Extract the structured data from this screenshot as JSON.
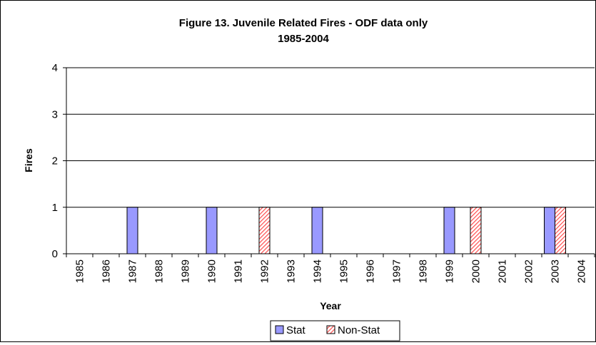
{
  "chart_data": {
    "type": "bar",
    "title_line1": "Figure 13.  Juvenile Related Fires - ODF data only",
    "title_line2": "1985-2004",
    "xlabel": "Year",
    "ylabel": "Fires",
    "ylim": [
      0,
      4
    ],
    "yticks": [
      0,
      1,
      2,
      3,
      4
    ],
    "grid": true,
    "legend_position": "bottom",
    "categories": [
      "1985",
      "1986",
      "1987",
      "1988",
      "1989",
      "1990",
      "1991",
      "1992",
      "1993",
      "1994",
      "1995",
      "1996",
      "1997",
      "1998",
      "1999",
      "2000",
      "2001",
      "2002",
      "2003",
      "2004"
    ],
    "series": [
      {
        "name": "Stat",
        "color": "#9999ff",
        "pattern": "solid",
        "values": [
          0,
          0,
          1,
          0,
          0,
          1,
          0,
          0,
          0,
          1,
          0,
          0,
          0,
          0,
          1,
          0,
          0,
          0,
          1,
          0
        ]
      },
      {
        "name": "Non-Stat",
        "color": "#ff8080",
        "pattern": "diagonal-hatch",
        "values": [
          0,
          0,
          0,
          0,
          0,
          0,
          0,
          1,
          0,
          0,
          0,
          0,
          0,
          0,
          0,
          1,
          0,
          0,
          1,
          0
        ]
      }
    ]
  }
}
